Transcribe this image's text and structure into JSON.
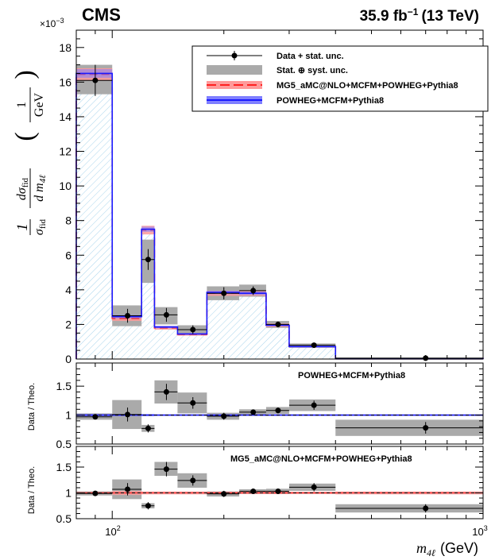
{
  "header": {
    "experiment": "CMS",
    "lumi": "35.9 fb",
    "lumi_exp": "−1",
    "energy": "(13 TeV)",
    "multiplier": "×10",
    "multiplier_exp": "−3"
  },
  "legend": {
    "data": "Data + stat. unc.",
    "syst": "Stat. ⊕ syst. unc.",
    "mg5": "MG5_aMC@NLO+MCFM+POWHEG+Pythia8",
    "powheg": "POWHEG+MCFM+Pythia8"
  },
  "ratio_panels": {
    "top_title": "POWHEG+MCFM+Pythia8",
    "bottom_title": "MG5_aMC@NLO+MCFM+POWHEG+Pythia8",
    "ylabel": "Data / Theo."
  },
  "axis": {
    "x_ticks": [
      "10",
      "2",
      "10",
      "3"
    ],
    "xlabel": "m",
    "xlabel_sub": "4ℓ",
    "xlabel_unit": "(GeV)"
  },
  "colors": {
    "data": "#000000",
    "syst_band": "#aaaaaa",
    "mg5": "#ff2020",
    "mg5_band": "#ff9a9a",
    "powheg": "#1a1aff",
    "powheg_band": "#7f7fff",
    "hatch": "#a8d4ec"
  },
  "chart_data": [
    {
      "type": "bar",
      "xscale": "log",
      "xlim": [
        80,
        1000
      ],
      "ylim": [
        0,
        19
      ],
      "y_multiplier": 0.001,
      "y_ticks": [
        0,
        2,
        4,
        6,
        8,
        10,
        12,
        14,
        16,
        18
      ],
      "bin_edges": [
        80,
        100,
        120,
        130,
        150,
        180,
        220,
        260,
        300,
        400,
        1000
      ],
      "data": {
        "x": [
          90,
          110,
          125,
          140,
          165,
          200,
          240,
          280,
          350,
          700
        ],
        "y": [
          16.1,
          2.5,
          5.75,
          2.55,
          1.7,
          3.8,
          3.95,
          2.0,
          0.8,
          0.05
        ],
        "yerr": [
          0.9,
          0.4,
          0.6,
          0.4,
          0.25,
          0.35,
          0.25,
          0.15,
          0.08,
          0.01
        ],
        "syst_lo": [
          15.3,
          1.9,
          4.4,
          2.0,
          1.4,
          3.4,
          3.6,
          1.8,
          0.65,
          0.02
        ],
        "syst_hi": [
          17.0,
          3.1,
          6.9,
          3.0,
          1.95,
          4.2,
          4.3,
          2.2,
          0.9,
          0.08
        ]
      },
      "series": [
        {
          "name": "MG5_aMC@NLO+MCFM+POWHEG+Pythia8",
          "values": [
            16.45,
            2.35,
            7.45,
            1.8,
            1.42,
            3.8,
            3.8,
            1.95,
            0.72,
            0.03
          ],
          "band_lo": [
            16.1,
            2.2,
            7.2,
            1.7,
            1.35,
            3.65,
            3.65,
            1.85,
            0.68,
            0.02
          ],
          "band_hi": [
            16.8,
            2.5,
            7.7,
            1.9,
            1.5,
            3.95,
            3.95,
            2.05,
            0.76,
            0.04
          ]
        },
        {
          "name": "POWHEG+MCFM+Pythia8",
          "values": [
            16.5,
            2.45,
            7.5,
            1.85,
            1.45,
            3.85,
            3.8,
            1.95,
            0.72,
            0.03
          ],
          "band_lo": [
            16.25,
            2.35,
            7.35,
            1.78,
            1.4,
            3.75,
            3.7,
            1.9,
            0.7,
            0.025
          ],
          "band_hi": [
            16.75,
            2.55,
            7.65,
            1.92,
            1.5,
            3.95,
            3.9,
            2.0,
            0.74,
            0.035
          ]
        }
      ]
    },
    {
      "type": "scatter",
      "title": "POWHEG+MCFM+Pythia8",
      "ylabel": "Data / Theo.",
      "xscale": "log",
      "ylim": [
        0.5,
        1.9
      ],
      "y_ticks": [
        0.5,
        1,
        1.5
      ],
      "reference": 1,
      "x": [
        90,
        110,
        125,
        140,
        165,
        200,
        240,
        280,
        350,
        700
      ],
      "y": [
        0.97,
        1.01,
        0.77,
        1.4,
        1.21,
        0.98,
        1.05,
        1.08,
        1.17,
        0.78
      ],
      "yerr": [
        0.04,
        0.12,
        0.07,
        0.14,
        0.1,
        0.06,
        0.04,
        0.05,
        0.08,
        0.1
      ],
      "syst_lo": [
        0.92,
        0.76,
        0.71,
        1.2,
        1.03,
        0.92,
        1.0,
        1.02,
        1.07,
        0.64
      ],
      "syst_hi": [
        1.03,
        1.26,
        0.83,
        1.6,
        1.39,
        1.04,
        1.1,
        1.14,
        1.27,
        0.92
      ],
      "band_lo": [
        0.98,
        0.98,
        0.98,
        0.985,
        0.985,
        0.985,
        0.985,
        0.985,
        0.985,
        0.985
      ],
      "band_hi": [
        1.02,
        1.02,
        1.02,
        1.015,
        1.015,
        1.015,
        1.015,
        1.015,
        1.015,
        1.015
      ]
    },
    {
      "type": "scatter",
      "title": "MG5_aMC@NLO+MCFM+POWHEG+Pythia8",
      "ylabel": "Data / Theo.",
      "xscale": "log",
      "ylim": [
        0.5,
        1.9
      ],
      "y_ticks": [
        0.5,
        1,
        1.5
      ],
      "reference": 1,
      "x": [
        90,
        110,
        125,
        140,
        165,
        200,
        240,
        280,
        350,
        700
      ],
      "y": [
        0.99,
        1.07,
        0.75,
        1.46,
        1.24,
        0.98,
        1.03,
        1.03,
        1.11,
        0.7
      ],
      "yerr": [
        0.04,
        0.12,
        0.07,
        0.14,
        0.1,
        0.06,
        0.04,
        0.05,
        0.08,
        0.08
      ],
      "syst_lo": [
        0.95,
        0.88,
        0.7,
        1.33,
        1.1,
        0.93,
        0.99,
        0.98,
        1.04,
        0.62
      ],
      "syst_hi": [
        1.03,
        1.26,
        0.8,
        1.6,
        1.38,
        1.03,
        1.07,
        1.08,
        1.18,
        0.78
      ],
      "band_lo": [
        0.98,
        0.96,
        0.97,
        0.97,
        0.97,
        0.975,
        0.975,
        0.975,
        0.975,
        0.97
      ],
      "band_hi": [
        1.02,
        1.04,
        1.03,
        1.03,
        1.03,
        1.025,
        1.025,
        1.025,
        1.025,
        1.03
      ]
    }
  ]
}
